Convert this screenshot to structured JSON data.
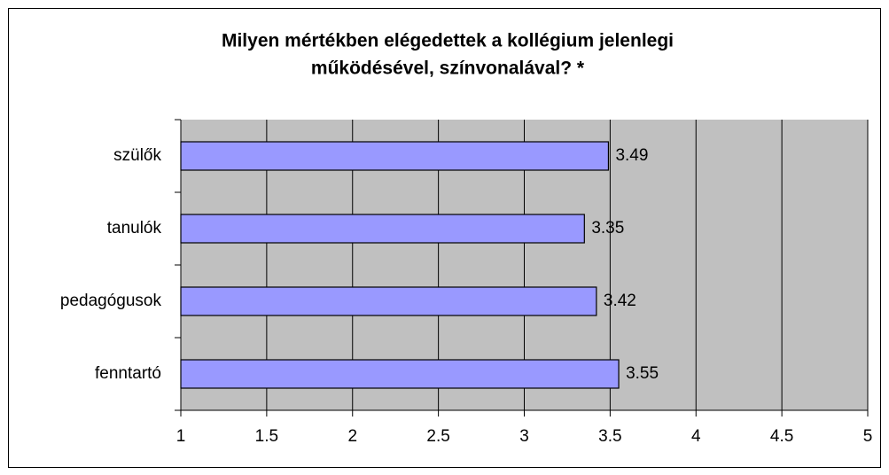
{
  "chart_data": {
    "type": "bar",
    "orientation": "horizontal",
    "title": [
      "Milyen mértékben elégedettek a kollégium jelenlegi",
      "működésével, színvonalával? *"
    ],
    "categories": [
      "szülők",
      "tanulók",
      "pedagógusok",
      "fenntartó"
    ],
    "values": [
      3.49,
      3.35,
      3.42,
      3.55
    ],
    "color": "#9999ff",
    "xlim": [
      1,
      5
    ],
    "xticks": [
      1,
      1.5,
      2,
      2.5,
      3,
      3.5,
      4,
      4.5,
      5
    ],
    "grid": true,
    "plot_background": "#c0c0c0"
  }
}
